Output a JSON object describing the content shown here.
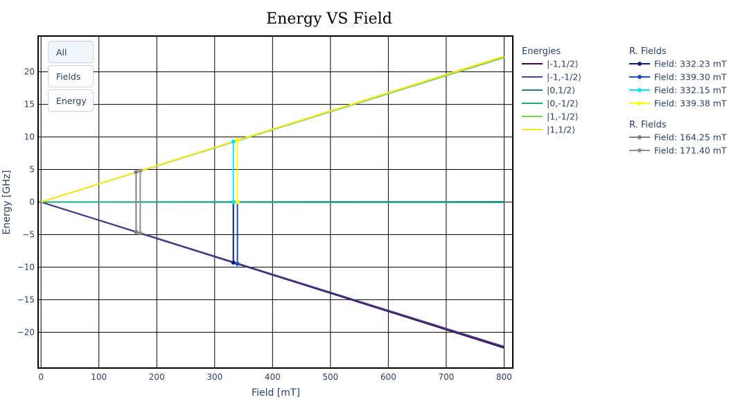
{
  "chart_data": {
    "type": "line",
    "title": "Energy VS Field",
    "xlabel": "Field [mT]",
    "ylabel": "Energy [GHz]",
    "xlim": [
      -5,
      815
    ],
    "ylim": [
      -25.5,
      25.5
    ],
    "xticks": [
      0,
      100,
      200,
      300,
      400,
      500,
      600,
      700,
      800
    ],
    "yticks": [
      -20,
      -15,
      -10,
      -5,
      0,
      5,
      10,
      15,
      20
    ],
    "ytick_labels": [
      "−20",
      "−15",
      "−10",
      "−5",
      "0",
      "5",
      "10",
      "15",
      "20"
    ],
    "grid": true,
    "legend_placement": "right",
    "energies_legend_title": "Energies",
    "series": [
      {
        "name": "|-1,1/2⟩",
        "color": "#440154",
        "x": [
          0,
          800
        ],
        "y": [
          0,
          -22.4
        ]
      },
      {
        "name": "|-1,-1/2⟩",
        "color": "#414487",
        "x": [
          0,
          800
        ],
        "y": [
          0,
          -22.2
        ]
      },
      {
        "name": "|0,1/2⟩",
        "color": "#2a788e",
        "x": [
          0,
          800
        ],
        "y": [
          0,
          0.05
        ]
      },
      {
        "name": "|0,-1/2⟩",
        "color": "#22a884",
        "x": [
          0,
          800
        ],
        "y": [
          0,
          -0.05
        ]
      },
      {
        "name": "|1,-1/2⟩",
        "color": "#7ad151",
        "x": [
          0,
          800
        ],
        "y": [
          0,
          22.2
        ]
      },
      {
        "name": "|1,1/2⟩",
        "color": "#fde725",
        "x": [
          0,
          800
        ],
        "y": [
          0,
          22.4
        ]
      }
    ],
    "resonance_groups": [
      {
        "title": "R. Fields",
        "items": [
          {
            "name": "Field: 332.23 mT",
            "color": "#0a1f6e",
            "x": [
              332.23,
              332.23
            ],
            "y": [
              0,
              -9.3
            ]
          },
          {
            "name": "Field: 339.30 mT",
            "color": "#1f4ab8",
            "x": [
              339.3,
              339.3
            ],
            "y": [
              0,
              -9.5
            ]
          },
          {
            "name": "Field: 332.15 mT",
            "color": "#00e5ff",
            "x": [
              332.15,
              332.15
            ],
            "y": [
              0,
              9.3
            ]
          },
          {
            "name": "Field: 339.38 mT",
            "color": "#ffff00",
            "x": [
              339.38,
              339.38
            ],
            "y": [
              0,
              9.5
            ]
          }
        ]
      },
      {
        "title": "R. Fields",
        "items": [
          {
            "name": "Field: 164.25 mT",
            "color": "#808080",
            "x": [
              164.25,
              164.25
            ],
            "y": [
              -4.6,
              4.6
            ]
          },
          {
            "name": "Field: 171.40 mT",
            "color": "#8f8f8f",
            "x": [
              171.4,
              171.4
            ],
            "y": [
              -4.8,
              4.8
            ]
          }
        ]
      }
    ]
  },
  "buttons": {
    "all_label": "All",
    "fields_label": "Fields",
    "energy_label": "Energy"
  }
}
